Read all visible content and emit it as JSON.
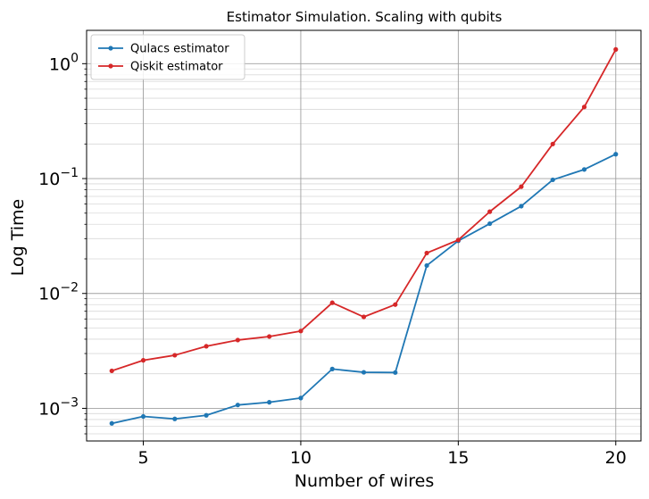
{
  "chart_data": {
    "type": "line",
    "title": "Estimator Simulation. Scaling with qubits",
    "xlabel": "Number of wires",
    "ylabel": "Log Time",
    "yscale": "log",
    "xlim": [
      3.2,
      20.8
    ],
    "ylim": [
      0.00052,
      1.95
    ],
    "x_ticks": [
      5,
      10,
      15,
      20
    ],
    "y_ticks": [
      {
        "value": 0.001,
        "base": "10",
        "exp": "−3"
      },
      {
        "value": 0.01,
        "base": "10",
        "exp": "−2"
      },
      {
        "value": 0.1,
        "base": "10",
        "exp": "−1"
      },
      {
        "value": 1,
        "base": "10",
        "exp": "0"
      }
    ],
    "grid": true,
    "legend_position": "top-left",
    "x": [
      4,
      5,
      6,
      7,
      8,
      9,
      10,
      11,
      12,
      13,
      14,
      15,
      16,
      17,
      18,
      19,
      20
    ],
    "series": [
      {
        "name": "Qulacs estimator",
        "color": "#1f77b4",
        "values": [
          0.00074,
          0.00085,
          0.00081,
          0.00087,
          0.00107,
          0.00113,
          0.00123,
          0.0022,
          0.00206,
          0.00205,
          0.0175,
          0.0287,
          0.0405,
          0.0575,
          0.0975,
          0.12,
          0.163
        ]
      },
      {
        "name": "Qiskit estimator",
        "color": "#d62728",
        "values": [
          0.00212,
          0.00262,
          0.0029,
          0.00347,
          0.00393,
          0.00422,
          0.00471,
          0.0083,
          0.00625,
          0.008,
          0.0225,
          0.0292,
          0.0515,
          0.085,
          0.2,
          0.42,
          1.33
        ]
      }
    ]
  }
}
